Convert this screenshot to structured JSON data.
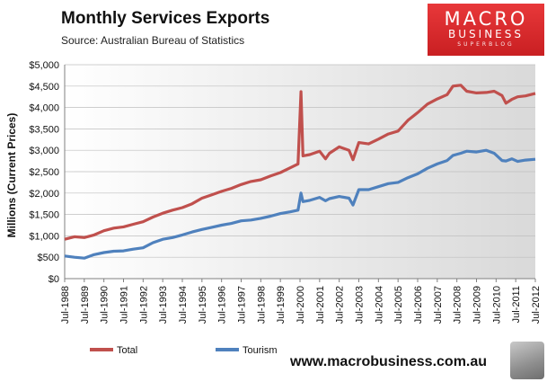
{
  "chart_data": {
    "type": "line",
    "title": "Monthly  Services Exports",
    "subtitle": "Source:  Australian Bureau of Statistics",
    "xlabel": "",
    "ylabel": "Millions (Current Prices)",
    "ylim": [
      0,
      5000
    ],
    "yticks": [
      "$0",
      "$500",
      "$1,000",
      "$1,500",
      "$2,000",
      "$2,500",
      "$3,000",
      "$3,500",
      "$4,000",
      "$4,500",
      "$5,000"
    ],
    "xlim": [
      1988.5,
      2012.5
    ],
    "xticks": [
      "Jul-1988",
      "Jul-1989",
      "Jul-1990",
      "Jul-1991",
      "Jul-1992",
      "Jul-1993",
      "Jul-1994",
      "Jul-1995",
      "Jul-1996",
      "Jul-1997",
      "Jul-1998",
      "Jul-1999",
      "Jul-2000",
      "Jul-2001",
      "Jul-2002",
      "Jul-2003",
      "Jul-2004",
      "Jul-2005",
      "Jul-2006",
      "Jul-2007",
      "Jul-2008",
      "Jul-2009",
      "Jul-2010",
      "Jul-2011",
      "Jul-2012"
    ],
    "series": [
      {
        "name": "Total",
        "color": "#c0504d",
        "points": [
          [
            1988.5,
            920
          ],
          [
            1989.0,
            980
          ],
          [
            1989.5,
            960
          ],
          [
            1990.0,
            1020
          ],
          [
            1990.5,
            1120
          ],
          [
            1991.0,
            1180
          ],
          [
            1991.5,
            1210
          ],
          [
            1992.0,
            1270
          ],
          [
            1992.5,
            1330
          ],
          [
            1993.0,
            1440
          ],
          [
            1993.5,
            1530
          ],
          [
            1994.0,
            1600
          ],
          [
            1994.5,
            1660
          ],
          [
            1995.0,
            1750
          ],
          [
            1995.5,
            1880
          ],
          [
            1996.0,
            1960
          ],
          [
            1996.5,
            2040
          ],
          [
            1997.0,
            2110
          ],
          [
            1997.5,
            2200
          ],
          [
            1998.0,
            2270
          ],
          [
            1998.5,
            2310
          ],
          [
            1999.0,
            2400
          ],
          [
            1999.5,
            2480
          ],
          [
            2000.0,
            2590
          ],
          [
            2000.4,
            2680
          ],
          [
            2000.55,
            4370
          ],
          [
            2000.65,
            2870
          ],
          [
            2001.0,
            2900
          ],
          [
            2001.5,
            2980
          ],
          [
            2001.8,
            2800
          ],
          [
            2002.0,
            2930
          ],
          [
            2002.5,
            3080
          ],
          [
            2003.0,
            3000
          ],
          [
            2003.2,
            2780
          ],
          [
            2003.5,
            3180
          ],
          [
            2004.0,
            3150
          ],
          [
            2004.5,
            3260
          ],
          [
            2005.0,
            3380
          ],
          [
            2005.5,
            3450
          ],
          [
            2006.0,
            3700
          ],
          [
            2006.5,
            3880
          ],
          [
            2007.0,
            4080
          ],
          [
            2007.5,
            4200
          ],
          [
            2008.0,
            4300
          ],
          [
            2008.3,
            4500
          ],
          [
            2008.7,
            4520
          ],
          [
            2009.0,
            4380
          ],
          [
            2009.5,
            4340
          ],
          [
            2010.0,
            4350
          ],
          [
            2010.4,
            4380
          ],
          [
            2010.8,
            4280
          ],
          [
            2011.0,
            4100
          ],
          [
            2011.3,
            4190
          ],
          [
            2011.6,
            4250
          ],
          [
            2012.0,
            4270
          ],
          [
            2012.5,
            4330
          ]
        ]
      },
      {
        "name": "Tourism",
        "color": "#4f81bd",
        "points": [
          [
            1988.5,
            530
          ],
          [
            1989.0,
            500
          ],
          [
            1989.5,
            480
          ],
          [
            1990.0,
            560
          ],
          [
            1990.5,
            610
          ],
          [
            1991.0,
            640
          ],
          [
            1991.5,
            650
          ],
          [
            1992.0,
            690
          ],
          [
            1992.5,
            720
          ],
          [
            1993.0,
            840
          ],
          [
            1993.5,
            920
          ],
          [
            1994.0,
            960
          ],
          [
            1994.5,
            1020
          ],
          [
            1995.0,
            1090
          ],
          [
            1995.5,
            1150
          ],
          [
            1996.0,
            1200
          ],
          [
            1996.5,
            1250
          ],
          [
            1997.0,
            1290
          ],
          [
            1997.5,
            1350
          ],
          [
            1998.0,
            1370
          ],
          [
            1998.5,
            1410
          ],
          [
            1999.0,
            1460
          ],
          [
            1999.5,
            1520
          ],
          [
            2000.0,
            1560
          ],
          [
            2000.4,
            1600
          ],
          [
            2000.55,
            2000
          ],
          [
            2000.65,
            1800
          ],
          [
            2001.0,
            1830
          ],
          [
            2001.5,
            1900
          ],
          [
            2001.8,
            1820
          ],
          [
            2002.0,
            1870
          ],
          [
            2002.5,
            1920
          ],
          [
            2003.0,
            1880
          ],
          [
            2003.2,
            1720
          ],
          [
            2003.5,
            2080
          ],
          [
            2004.0,
            2080
          ],
          [
            2004.5,
            2150
          ],
          [
            2005.0,
            2220
          ],
          [
            2005.5,
            2250
          ],
          [
            2006.0,
            2360
          ],
          [
            2006.5,
            2450
          ],
          [
            2007.0,
            2580
          ],
          [
            2007.5,
            2680
          ],
          [
            2008.0,
            2760
          ],
          [
            2008.3,
            2880
          ],
          [
            2008.7,
            2930
          ],
          [
            2009.0,
            2980
          ],
          [
            2009.5,
            2960
          ],
          [
            2010.0,
            3000
          ],
          [
            2010.4,
            2930
          ],
          [
            2010.8,
            2760
          ],
          [
            2011.0,
            2750
          ],
          [
            2011.3,
            2800
          ],
          [
            2011.6,
            2740
          ],
          [
            2012.0,
            2770
          ],
          [
            2012.5,
            2790
          ]
        ]
      }
    ],
    "legend": [
      "Total",
      "Tourism"
    ]
  },
  "branding": {
    "logo_line1": "MACRO",
    "logo_line2": "BUSINESS",
    "logo_line3": "SUPERBLOG",
    "url": "www.macrobusiness.com.au",
    "accent_color": "#d42a2d"
  }
}
